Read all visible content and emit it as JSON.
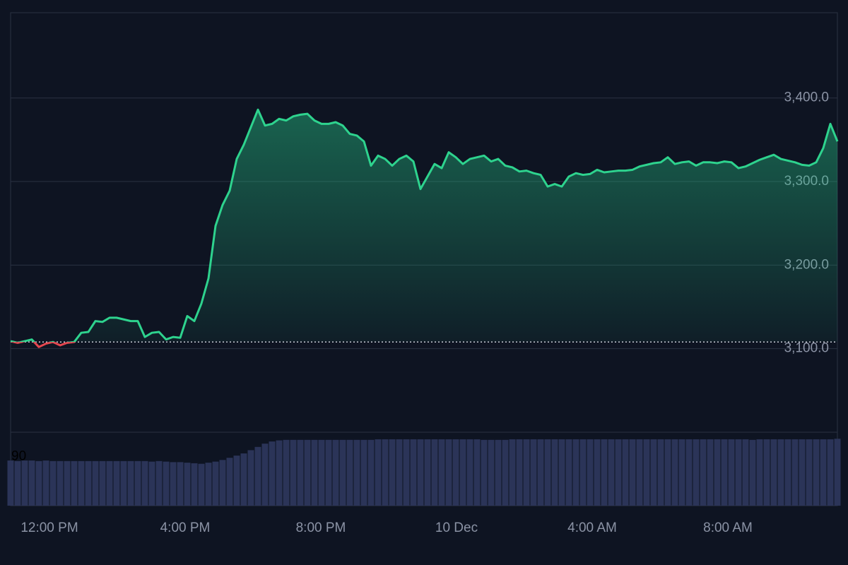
{
  "chart_data": {
    "type": "area",
    "values": [
      3109,
      3107,
      3109,
      3111,
      3102,
      3106,
      3108,
      3104,
      3107,
      3108,
      3119,
      3120,
      3133,
      3132,
      3137,
      3137,
      3135,
      3133,
      3133,
      3114,
      3119,
      3120,
      3111,
      3114,
      3113,
      3139,
      3133,
      3154,
      3184,
      3247,
      3272,
      3289,
      3327,
      3344,
      3365,
      3386,
      3367,
      3369,
      3375,
      3373,
      3378,
      3380,
      3381,
      3373,
      3369,
      3369,
      3371,
      3367,
      3357,
      3355,
      3348,
      3319,
      3331,
      3327,
      3319,
      3327,
      3331,
      3324,
      3291,
      3306,
      3321,
      3316,
      3335,
      3329,
      3321,
      3327,
      3329,
      3331,
      3324,
      3327,
      3319,
      3317,
      3312,
      3313,
      3310,
      3308,
      3294,
      3297,
      3294,
      3306,
      3310,
      3308,
      3309,
      3314,
      3311,
      3312,
      3313,
      3313,
      3314,
      3318,
      3320,
      3322,
      3323,
      3329,
      3321,
      3323,
      3324,
      3319,
      3323,
      3323,
      3322,
      3324,
      3323,
      3316,
      3318,
      3322,
      3326,
      3329,
      3332,
      3327,
      3325,
      3323,
      3320,
      3319,
      3323,
      3340,
      3369,
      3348
    ],
    "color": "#2ed38e",
    "down_color": "#e5474f",
    "baseline": 3108,
    "xlim": [
      0,
      117
    ],
    "xticks": [
      {
        "value": 5.5,
        "label": "12:00 PM"
      },
      {
        "value": 24.7,
        "label": "4:00 PM"
      },
      {
        "value": 43.9,
        "label": "8:00 PM"
      },
      {
        "value": 63.1,
        "label": "10 Dec"
      },
      {
        "value": 82.3,
        "label": "4:00 AM"
      },
      {
        "value": 101.5,
        "label": "8:00 AM"
      }
    ],
    "ylim": [
      3000,
      3502
    ],
    "yticks": [
      {
        "value": 3100,
        "label": "3,100.0"
      },
      {
        "value": 3200,
        "label": "3,200.0"
      },
      {
        "value": 3300,
        "label": "3,300.0"
      },
      {
        "value": 3400,
        "label": "3,400.0"
      }
    ],
    "grid": true,
    "volume": {
      "color": "#2b3458",
      "ylim": [
        0,
        135
      ],
      "yticks": [
        90
      ],
      "values": [
        83,
        82,
        83,
        83,
        82,
        83,
        82,
        82,
        82,
        82,
        82,
        82,
        82,
        82,
        82,
        82,
        82,
        82,
        82,
        82,
        81,
        82,
        81,
        80,
        80,
        79,
        78,
        77,
        79,
        81,
        84,
        88,
        92,
        96,
        102,
        108,
        114,
        118,
        120,
        121,
        121,
        121,
        121,
        121,
        121,
        121,
        121,
        121,
        121,
        121,
        121,
        121,
        122,
        122,
        122,
        122,
        122,
        122,
        122,
        122,
        122,
        122,
        122,
        122,
        122,
        122,
        122,
        121,
        121,
        121,
        121,
        122,
        122,
        122,
        122,
        122,
        122,
        122,
        122,
        122,
        122,
        122,
        122,
        122,
        122,
        122,
        122,
        122,
        122,
        122,
        122,
        122,
        122,
        122,
        122,
        122,
        122,
        122,
        122,
        122,
        122,
        122,
        122,
        122,
        122,
        121,
        122,
        122,
        122,
        122,
        122,
        122,
        122,
        122,
        122,
        122,
        122,
        123
      ]
    }
  }
}
